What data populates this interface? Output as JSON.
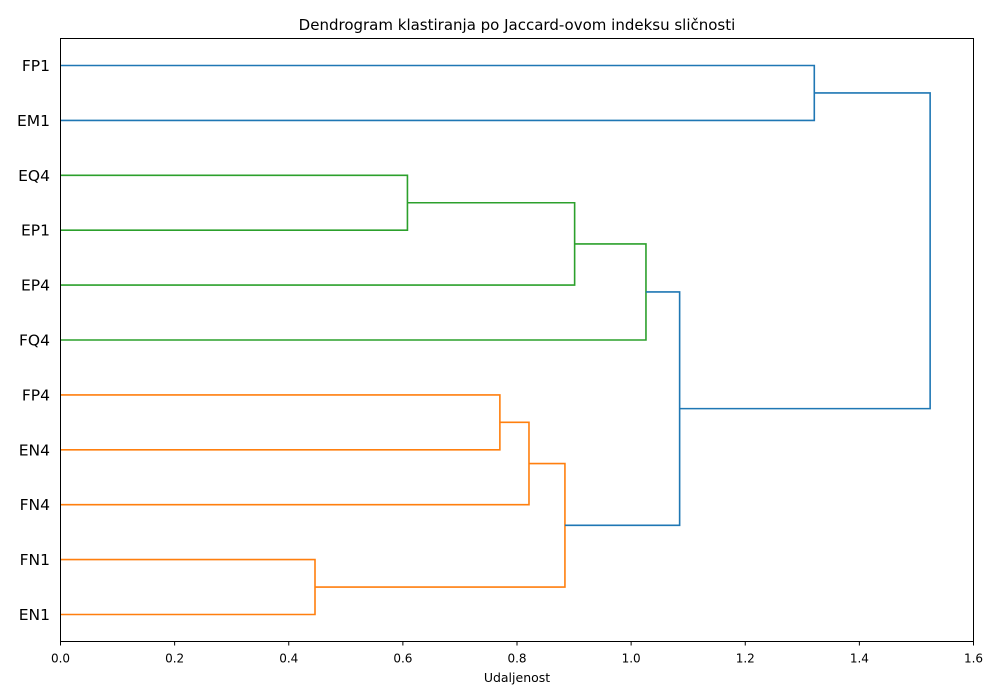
{
  "chart_data": {
    "type": "dendrogram",
    "title": "Dendrogram klastiranja po Jaccard-ovom indeksu sličnosti",
    "xlabel": "Udaljenost",
    "ylabel": "",
    "xlim": [
      0,
      1.6
    ],
    "xticks": [
      "0.0",
      "0.2",
      "0.4",
      "0.6",
      "0.8",
      "1.0",
      "1.2",
      "1.4",
      "1.6"
    ],
    "grid": false,
    "orientation": "left",
    "leaves": [
      "FP1",
      "EM1",
      "EQ4",
      "EP1",
      "EP4",
      "FQ4",
      "FP4",
      "EN4",
      "FN4",
      "FN1",
      "EN1"
    ],
    "colors": {
      "above": "#1f77b4",
      "cluster_a": "#2ca02c",
      "cluster_b": "#ff7f0e"
    },
    "links": [
      {
        "left": "EQ4",
        "right": "EP1",
        "distance": 0.608,
        "color": "#2ca02c"
      },
      {
        "left": "EQ4+EP1",
        "right": "EP4",
        "distance": 0.901,
        "color": "#2ca02c"
      },
      {
        "left": "EQ4+EP1+EP4",
        "right": "FQ4",
        "distance": 1.026,
        "color": "#2ca02c"
      },
      {
        "left": "FP4",
        "right": "EN4",
        "distance": 0.77,
        "color": "#ff7f0e"
      },
      {
        "left": "FP4+EN4",
        "right": "FN4",
        "distance": 0.821,
        "color": "#ff7f0e"
      },
      {
        "left": "FN1",
        "right": "EN1",
        "distance": 0.446,
        "color": "#ff7f0e"
      },
      {
        "left": "FP4+EN4+FN4",
        "right": "FN1+EN1",
        "distance": 0.884,
        "color": "#ff7f0e"
      },
      {
        "left": "EQ4+EP1+EP4+FQ4",
        "right": "FP4+EN4+FN4+FN1+EN1",
        "distance": 1.085,
        "color": "#1f77b4"
      },
      {
        "left": "FP1",
        "right": "EM1",
        "distance": 1.321,
        "color": "#1f77b4"
      },
      {
        "left": "FP1+EM1",
        "right": "EQ4+EP1+EP4+FQ4+FP4+EN4+FN4+FN1+EN1",
        "distance": 1.524,
        "color": "#1f77b4"
      }
    ]
  }
}
